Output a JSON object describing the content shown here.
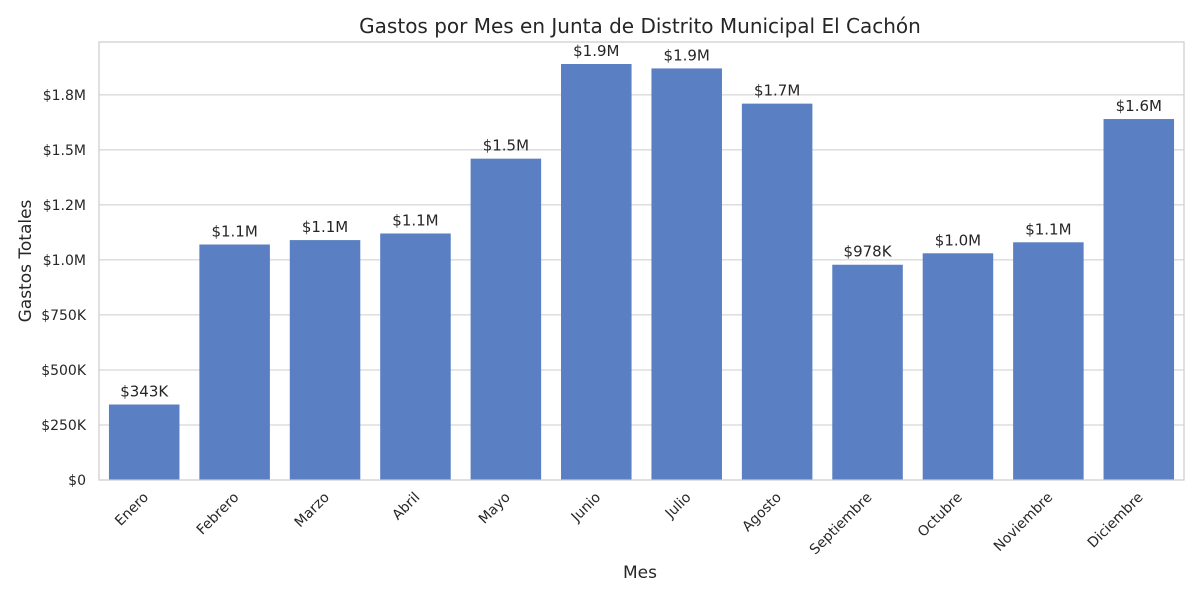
{
  "chart_data": {
    "type": "bar",
    "title": "Gastos por Mes en Junta de Distrito Municipal El Cachón",
    "xlabel": "Mes",
    "ylabel": "Gastos Totales",
    "categories": [
      "Enero",
      "Febrero",
      "Marzo",
      "Abril",
      "Mayo",
      "Junio",
      "Julio",
      "Agosto",
      "Septiembre",
      "Octubre",
      "Noviembre",
      "Diciembre"
    ],
    "values": [
      343000,
      1070000,
      1090000,
      1120000,
      1460000,
      1890000,
      1870000,
      1710000,
      978000,
      1030000,
      1080000,
      1640000
    ],
    "value_labels": [
      "$343K",
      "$1.1M",
      "$1.1M",
      "$1.1M",
      "$1.5M",
      "$1.9M",
      "$1.9M",
      "$1.7M",
      "$978K",
      "$1.0M",
      "$1.1M",
      "$1.6M"
    ],
    "yticks": [
      0,
      250000,
      500000,
      750000,
      1000000,
      1250000,
      1500000,
      1750000
    ],
    "ytick_labels": [
      "$0",
      "$250K",
      "$500K",
      "$750K",
      "$1.0M",
      "$1.2M",
      "$1.5M",
      "$1.8M"
    ],
    "ylim": [
      0,
      1990000
    ],
    "grid": "horizontal",
    "bar_color": "#5a7fc2"
  }
}
